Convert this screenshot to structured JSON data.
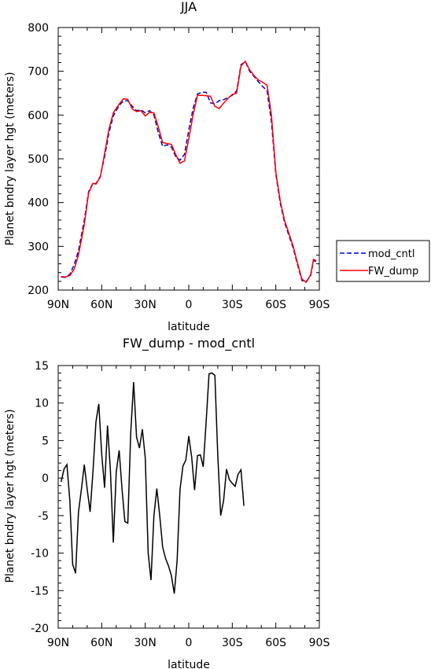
{
  "chart_data": [
    {
      "type": "line",
      "title": "JJA",
      "xlabel": "latitude",
      "ylabel": "Planet bndry layer hgt (meters)",
      "xlim": [
        -90,
        90
      ],
      "ylim": [
        200,
        800
      ],
      "x_ticks": [
        -90,
        -60,
        -30,
        0,
        30,
        60,
        90
      ],
      "x_tick_labels": [
        "90N",
        "60N",
        "30N",
        "0",
        "30S",
        "60S",
        "90S"
      ],
      "y_ticks": [
        200,
        300,
        400,
        500,
        600,
        700,
        800
      ],
      "y_tick_labels": [
        "200",
        "300",
        "400",
        "500",
        "600",
        "700",
        "800"
      ],
      "legend_position": "right",
      "series": [
        {
          "name": "mod_cntl",
          "color": "#0000cc",
          "dash": "dashed",
          "points": [
            [
              -88,
              230
            ],
            [
              -85,
              229
            ],
            [
              -82,
              236
            ],
            [
              -79,
              258
            ],
            [
              -76,
              290
            ],
            [
              -72,
              360
            ],
            [
              -69,
              425
            ],
            [
              -66,
              445
            ],
            [
              -64,
              443
            ],
            [
              -61,
              460
            ],
            [
              -58,
              505
            ],
            [
              -55,
              560
            ],
            [
              -52,
              598
            ],
            [
              -48,
              622
            ],
            [
              -45,
              632
            ],
            [
              -42,
              633
            ],
            [
              -39,
              620
            ],
            [
              -36,
              610
            ],
            [
              -33,
              612
            ],
            [
              -30,
              605
            ],
            [
              -27,
              610
            ],
            [
              -24,
              600
            ],
            [
              -21,
              560
            ],
            [
              -18,
              528
            ],
            [
              -15,
              532
            ],
            [
              -12,
              527
            ],
            [
              -9,
              505
            ],
            [
              -6,
              497
            ],
            [
              -3,
              510
            ],
            [
              0,
              565
            ],
            [
              3,
              615
            ],
            [
              6,
              648
            ],
            [
              9,
              652
            ],
            [
              12,
              652
            ],
            [
              15,
              628
            ],
            [
              18,
              625
            ],
            [
              21,
              633
            ],
            [
              24,
              635
            ],
            [
              27,
              640
            ],
            [
              30,
              645
            ],
            [
              33,
              655
            ],
            [
              36,
              715
            ],
            [
              39,
              722
            ],
            [
              42,
              700
            ],
            [
              45,
              688
            ],
            [
              48,
              676
            ],
            [
              51,
              665
            ],
            [
              54,
              655
            ],
            [
              57,
              585
            ],
            [
              60,
              465
            ],
            [
              63,
              400
            ],
            [
              66,
              355
            ],
            [
              69,
              325
            ],
            [
              72,
              296
            ],
            [
              75,
              258
            ],
            [
              78,
              222
            ],
            [
              81,
              220
            ],
            [
              84,
              232
            ],
            [
              86,
              268
            ],
            [
              88,
              264
            ]
          ]
        },
        {
          "name": "FW_dump",
          "color": "#ff0000",
          "dash": "solid",
          "points": [
            [
              -88,
              231
            ],
            [
              -85,
              230
            ],
            [
              -82,
              233
            ],
            [
              -79,
              248
            ],
            [
              -76,
              280
            ],
            [
              -72,
              350
            ],
            [
              -69,
              422
            ],
            [
              -66,
              444
            ],
            [
              -64,
              442
            ],
            [
              -61,
              458
            ],
            [
              -58,
              512
            ],
            [
              -55,
              568
            ],
            [
              -52,
              605
            ],
            [
              -48,
              625
            ],
            [
              -45,
              637
            ],
            [
              -42,
              636
            ],
            [
              -39,
              614
            ],
            [
              -36,
              608
            ],
            [
              -33,
              610
            ],
            [
              -30,
              598
            ],
            [
              -27,
              606
            ],
            [
              -24,
              605
            ],
            [
              -21,
              573
            ],
            [
              -18,
              537
            ],
            [
              -15,
              535
            ],
            [
              -12,
              533
            ],
            [
              -9,
              510
            ],
            [
              -6,
              490
            ],
            [
              -3,
              495
            ],
            [
              0,
              545
            ],
            [
              3,
              600
            ],
            [
              6,
              645
            ],
            [
              9,
              645
            ],
            [
              12,
              644
            ],
            [
              15,
              643
            ],
            [
              18,
              620
            ],
            [
              21,
              615
            ],
            [
              24,
              627
            ],
            [
              27,
              638
            ],
            [
              30,
              647
            ],
            [
              33,
              650
            ],
            [
              36,
              712
            ],
            [
              39,
              723
            ],
            [
              42,
              703
            ],
            [
              45,
              690
            ],
            [
              48,
              680
            ],
            [
              51,
              675
            ],
            [
              54,
              668
            ],
            [
              57,
              600
            ],
            [
              60,
              470
            ],
            [
              63,
              405
            ],
            [
              66,
              360
            ],
            [
              69,
              330
            ],
            [
              72,
              300
            ],
            [
              75,
              262
            ],
            [
              78,
              225
            ],
            [
              81,
              218
            ],
            [
              84,
              235
            ],
            [
              86,
              270
            ],
            [
              88,
              267
            ]
          ]
        }
      ]
    },
    {
      "type": "line",
      "title": "FW_dump - mod_cntl",
      "xlabel": "latitude",
      "ylabel": "Planet bndry layer hgt (meters)",
      "xlim": [
        -90,
        90
      ],
      "ylim": [
        -20,
        15
      ],
      "x_ticks": [
        -90,
        -60,
        -30,
        0,
        30,
        60,
        90
      ],
      "x_tick_labels": [
        "90N",
        "60N",
        "30N",
        "0",
        "30S",
        "60S",
        "90S"
      ],
      "y_ticks": [
        -20,
        -15,
        -10,
        -5,
        0,
        5,
        10,
        15
      ],
      "y_tick_labels": [
        "-20",
        "-15",
        "-10",
        "-5",
        "0",
        "5",
        "10",
        "15"
      ],
      "series": [
        {
          "color": "#000000",
          "dash": "solid",
          "points": [
            [
              -88,
              -0.5
            ],
            [
              -86,
              1.2
            ],
            [
              -84,
              1.8
            ],
            [
              -82,
              -3
            ],
            [
              -80,
              -11.5
            ],
            [
              -78,
              -12.7
            ],
            [
              -76,
              -4.5
            ],
            [
              -74,
              -1.5
            ],
            [
              -72,
              1.8
            ],
            [
              -70,
              -1.5
            ],
            [
              -68,
              -4.5
            ],
            [
              -66,
              1
            ],
            [
              -64,
              7.5
            ],
            [
              -62,
              9.9
            ],
            [
              -60,
              3.2
            ],
            [
              -58,
              -1.3
            ],
            [
              -56,
              7
            ],
            [
              -54,
              1
            ],
            [
              -52,
              -8.6
            ],
            [
              -50,
              0.8
            ],
            [
              -48,
              3.7
            ],
            [
              -46,
              -1.5
            ],
            [
              -44,
              -5.8
            ],
            [
              -42,
              -6
            ],
            [
              -40,
              6
            ],
            [
              -38,
              12.8
            ],
            [
              -36,
              5.5
            ],
            [
              -34,
              4
            ],
            [
              -32,
              6.5
            ],
            [
              -30,
              2.7
            ],
            [
              -28,
              -10
            ],
            [
              -26,
              -13.6
            ],
            [
              -24,
              -5
            ],
            [
              -22,
              -1.4
            ],
            [
              -20,
              -5
            ],
            [
              -18,
              -9.2
            ],
            [
              -16,
              -10.7
            ],
            [
              -14,
              -11.7
            ],
            [
              -12,
              -13
            ],
            [
              -10,
              -15.4
            ],
            [
              -8,
              -11
            ],
            [
              -6,
              -1.5
            ],
            [
              -4,
              1.6
            ],
            [
              -2,
              2.4
            ],
            [
              0,
              5.6
            ],
            [
              2,
              2.8
            ],
            [
              4,
              -1.6
            ],
            [
              6,
              3
            ],
            [
              8,
              3.1
            ],
            [
              10,
              1.5
            ],
            [
              12,
              7.5
            ],
            [
              14,
              13.9
            ],
            [
              16,
              14
            ],
            [
              18,
              13.7
            ],
            [
              20,
              3
            ],
            [
              22,
              -5
            ],
            [
              24,
              -3
            ],
            [
              26,
              1.2
            ],
            [
              28,
              -0.2
            ],
            [
              30,
              -0.7
            ],
            [
              32,
              -1.1
            ],
            [
              34,
              0.5
            ],
            [
              36,
              1.1
            ],
            [
              38,
              -3.7
            ]
          ]
        }
      ]
    }
  ]
}
